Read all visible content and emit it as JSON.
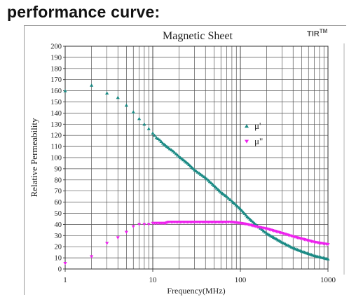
{
  "heading": "performance curve:",
  "brand": {
    "name": "TIR",
    "mark": "TM"
  },
  "chart_data": {
    "type": "scatter",
    "title": "Magnetic Sheet",
    "xlabel": "Frequency(MHz)",
    "ylabel": "Relative Permeability",
    "xscale": "log",
    "xlim": [
      1,
      1000
    ],
    "ylim": [
      0,
      200
    ],
    "xticks": [
      1,
      10,
      100,
      1000
    ],
    "xtick_labels": [
      "1",
      "10",
      "100",
      "1000"
    ],
    "yticks": [
      0,
      10,
      20,
      30,
      40,
      50,
      60,
      70,
      80,
      90,
      100,
      110,
      120,
      130,
      140,
      150,
      160,
      170,
      180,
      190,
      200
    ],
    "ytick_labels": [
      "0",
      "10",
      "20",
      "30",
      "40",
      "50",
      "60",
      "70",
      "80",
      "90",
      "100",
      "110",
      "120",
      "130",
      "140",
      "150",
      "160",
      "170",
      "180",
      "190",
      "200"
    ],
    "grid": true,
    "legend_position": "right-middle",
    "series": [
      {
        "name": "μ'",
        "color": "#1a8a84",
        "marker": "triangle-up",
        "x": [
          1,
          2,
          3,
          4,
          5,
          6,
          7,
          8,
          9,
          10,
          11,
          12,
          13,
          14,
          15,
          17,
          20,
          25,
          30,
          40,
          50,
          60,
          70,
          80,
          100,
          120,
          150,
          200,
          300,
          400,
          500,
          700,
          1000
        ],
        "y": [
          160,
          165,
          158,
          154,
          147,
          141,
          135,
          130,
          126,
          122,
          118,
          116,
          113,
          111,
          109,
          106,
          101,
          95,
          89,
          82,
          75,
          69,
          65,
          61,
          54,
          47,
          40,
          32,
          24,
          19,
          16,
          12,
          9
        ]
      },
      {
        "name": "μ\"",
        "color": "#ee22ee",
        "marker": "triangle-down",
        "x": [
          1,
          2,
          3,
          4,
          5,
          6,
          7,
          8,
          9,
          10,
          11,
          12,
          13,
          14,
          15,
          17,
          20,
          25,
          30,
          40,
          50,
          60,
          70,
          80,
          100,
          120,
          150,
          200,
          300,
          400,
          500,
          700,
          1000
        ],
        "y": [
          5,
          11,
          23,
          28,
          33,
          38,
          40,
          40,
          40,
          41,
          41,
          41,
          41,
          41,
          42,
          42,
          42,
          42,
          42,
          42,
          42,
          42,
          42,
          42,
          41,
          40,
          38,
          36,
          32,
          29,
          27,
          24,
          22
        ]
      }
    ]
  }
}
